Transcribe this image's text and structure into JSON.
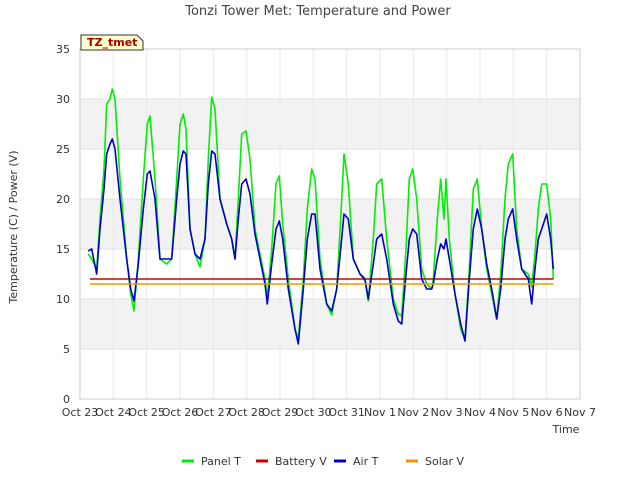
{
  "chart_data": {
    "type": "line",
    "title": "Tonzi Tower Met: Temperature and Power",
    "badge": "TZ_tmet",
    "xlabel": "Time",
    "ylabel": "Temperature (C) / Power (V)",
    "ylim": [
      0,
      35
    ],
    "yticks": [
      0,
      5,
      10,
      15,
      20,
      25,
      30,
      35
    ],
    "xlim": [
      0,
      15
    ],
    "xticks": [
      {
        "v": 0,
        "label": "Oct 23"
      },
      {
        "v": 1,
        "label": "Oct 24"
      },
      {
        "v": 2,
        "label": "Oct 25"
      },
      {
        "v": 3,
        "label": "Oct 26"
      },
      {
        "v": 4,
        "label": "Oct 27"
      },
      {
        "v": 5,
        "label": "Oct 28"
      },
      {
        "v": 6,
        "label": "Oct 29"
      },
      {
        "v": 7,
        "label": "Oct 30"
      },
      {
        "v": 8,
        "label": "Oct 31"
      },
      {
        "v": 9,
        "label": "Nov 1"
      },
      {
        "v": 10,
        "label": "Nov 2"
      },
      {
        "v": 11,
        "label": "Nov 3"
      },
      {
        "v": 12,
        "label": "Nov 4"
      },
      {
        "v": 13,
        "label": "Nov 5"
      },
      {
        "v": 14,
        "label": "Nov 6"
      },
      {
        "v": 15,
        "label": "Nov 7"
      }
    ],
    "grid": true,
    "legend_position": "bottom",
    "series": [
      {
        "name": "Panel T",
        "color": "#00ee00",
        "points": [
          [
            0.25,
            14.5
          ],
          [
            0.35,
            14.0
          ],
          [
            0.5,
            13.0
          ],
          [
            0.6,
            18.0
          ],
          [
            0.72,
            23.0
          ],
          [
            0.8,
            29.5
          ],
          [
            0.9,
            30.0
          ],
          [
            0.97,
            31.0
          ],
          [
            1.05,
            30.0
          ],
          [
            1.2,
            22.0
          ],
          [
            1.4,
            14.0
          ],
          [
            1.52,
            10.5
          ],
          [
            1.62,
            8.8
          ],
          [
            1.75,
            14.0
          ],
          [
            1.9,
            22.0
          ],
          [
            2.02,
            27.5
          ],
          [
            2.1,
            28.3
          ],
          [
            2.25,
            22.0
          ],
          [
            2.4,
            14.0
          ],
          [
            2.6,
            13.5
          ],
          [
            2.75,
            14.0
          ],
          [
            2.9,
            22.0
          ],
          [
            3.0,
            27.5
          ],
          [
            3.1,
            28.5
          ],
          [
            3.18,
            27.0
          ],
          [
            3.3,
            17.0
          ],
          [
            3.45,
            14.5
          ],
          [
            3.6,
            13.2
          ],
          [
            3.75,
            16.0
          ],
          [
            3.85,
            24.0
          ],
          [
            3.95,
            30.2
          ],
          [
            4.05,
            29.0
          ],
          [
            4.2,
            20.0
          ],
          [
            4.4,
            17.5
          ],
          [
            4.55,
            16.0
          ],
          [
            4.65,
            14.0
          ],
          [
            4.75,
            20.0
          ],
          [
            4.85,
            26.5
          ],
          [
            4.98,
            26.8
          ],
          [
            5.1,
            24.0
          ],
          [
            5.25,
            17.0
          ],
          [
            5.4,
            14.5
          ],
          [
            5.55,
            12.0
          ],
          [
            5.62,
            10.2
          ],
          [
            5.75,
            15.0
          ],
          [
            5.88,
            21.5
          ],
          [
            5.98,
            22.3
          ],
          [
            6.08,
            17.5
          ],
          [
            6.25,
            12.0
          ],
          [
            6.45,
            7.0
          ],
          [
            6.55,
            6.0
          ],
          [
            6.7,
            12.0
          ],
          [
            6.82,
            19.0
          ],
          [
            6.95,
            23.0
          ],
          [
            7.05,
            22.0
          ],
          [
            7.2,
            14.0
          ],
          [
            7.4,
            9.5
          ],
          [
            7.55,
            8.4
          ],
          [
            7.7,
            11.0
          ],
          [
            7.82,
            18.0
          ],
          [
            7.92,
            24.5
          ],
          [
            8.05,
            21.5
          ],
          [
            8.2,
            14.0
          ],
          [
            8.4,
            12.5
          ],
          [
            8.55,
            11.8
          ],
          [
            8.65,
            9.8
          ],
          [
            8.8,
            16.0
          ],
          [
            8.9,
            21.5
          ],
          [
            9.05,
            22.0
          ],
          [
            9.2,
            16.0
          ],
          [
            9.4,
            10.0
          ],
          [
            9.55,
            8.5
          ],
          [
            9.65,
            8.3
          ],
          [
            9.78,
            15.0
          ],
          [
            9.88,
            22.0
          ],
          [
            9.98,
            23.0
          ],
          [
            10.1,
            20.0
          ],
          [
            10.25,
            13.0
          ],
          [
            10.4,
            11.5
          ],
          [
            10.55,
            11.0
          ],
          [
            10.6,
            12.0
          ],
          [
            10.72,
            18.0
          ],
          [
            10.82,
            22.0
          ],
          [
            10.92,
            18.0
          ],
          [
            10.98,
            22.0
          ],
          [
            11.08,
            16.0
          ],
          [
            11.25,
            10.5
          ],
          [
            11.42,
            7.0
          ],
          [
            11.55,
            6.0
          ],
          [
            11.68,
            13.0
          ],
          [
            11.8,
            21.0
          ],
          [
            11.92,
            22.0
          ],
          [
            12.05,
            17.0
          ],
          [
            12.2,
            13.0
          ],
          [
            12.35,
            10.5
          ],
          [
            12.5,
            8.0
          ],
          [
            12.62,
            12.5
          ],
          [
            12.75,
            20.0
          ],
          [
            12.85,
            23.5
          ],
          [
            12.98,
            24.5
          ],
          [
            13.1,
            17.0
          ],
          [
            13.25,
            13.0
          ],
          [
            13.45,
            12.5
          ],
          [
            13.55,
            11.2
          ],
          [
            13.65,
            14.5
          ],
          [
            13.75,
            19.0
          ],
          [
            13.85,
            21.5
          ],
          [
            14.0,
            21.5
          ],
          [
            14.12,
            18.0
          ],
          [
            14.2,
            12.0
          ]
        ]
      },
      {
        "name": "Battery V",
        "color": "#cc0000",
        "points": [
          [
            0.3,
            12.0
          ],
          [
            3.0,
            12.0
          ],
          [
            6.0,
            12.0
          ],
          [
            9.0,
            12.0
          ],
          [
            12.0,
            12.0
          ],
          [
            14.2,
            12.0
          ]
        ]
      },
      {
        "name": "Air T",
        "color": "#0000cc",
        "points": [
          [
            0.25,
            14.8
          ],
          [
            0.35,
            15.0
          ],
          [
            0.5,
            12.5
          ],
          [
            0.6,
            17.0
          ],
          [
            0.72,
            21.0
          ],
          [
            0.8,
            24.5
          ],
          [
            0.9,
            25.5
          ],
          [
            0.97,
            26.0
          ],
          [
            1.05,
            25.0
          ],
          [
            1.2,
            20.0
          ],
          [
            1.4,
            14.0
          ],
          [
            1.52,
            11.0
          ],
          [
            1.62,
            9.8
          ],
          [
            1.75,
            13.5
          ],
          [
            1.9,
            19.0
          ],
          [
            2.02,
            22.5
          ],
          [
            2.1,
            22.8
          ],
          [
            2.25,
            20.0
          ],
          [
            2.4,
            14.0
          ],
          [
            2.6,
            14.0
          ],
          [
            2.75,
            14.0
          ],
          [
            2.9,
            20.0
          ],
          [
            3.0,
            23.5
          ],
          [
            3.1,
            24.8
          ],
          [
            3.18,
            24.5
          ],
          [
            3.3,
            17.0
          ],
          [
            3.45,
            14.5
          ],
          [
            3.6,
            14.0
          ],
          [
            3.75,
            16.0
          ],
          [
            3.85,
            21.5
          ],
          [
            3.95,
            24.8
          ],
          [
            4.05,
            24.5
          ],
          [
            4.2,
            20.0
          ],
          [
            4.4,
            17.5
          ],
          [
            4.55,
            16.0
          ],
          [
            4.65,
            14.0
          ],
          [
            4.75,
            18.0
          ],
          [
            4.85,
            21.5
          ],
          [
            4.98,
            22.0
          ],
          [
            5.1,
            20.5
          ],
          [
            5.25,
            16.5
          ],
          [
            5.4,
            14.0
          ],
          [
            5.55,
            11.5
          ],
          [
            5.62,
            9.5
          ],
          [
            5.75,
            13.5
          ],
          [
            5.88,
            17.0
          ],
          [
            5.98,
            17.8
          ],
          [
            6.08,
            16.0
          ],
          [
            6.25,
            11.0
          ],
          [
            6.45,
            7.0
          ],
          [
            6.55,
            5.5
          ],
          [
            6.7,
            11.0
          ],
          [
            6.82,
            16.0
          ],
          [
            6.95,
            18.5
          ],
          [
            7.05,
            18.5
          ],
          [
            7.2,
            13.0
          ],
          [
            7.4,
            9.5
          ],
          [
            7.55,
            8.8
          ],
          [
            7.7,
            11.0
          ],
          [
            7.82,
            15.0
          ],
          [
            7.92,
            18.5
          ],
          [
            8.05,
            18.0
          ],
          [
            8.2,
            14.0
          ],
          [
            8.4,
            12.5
          ],
          [
            8.55,
            12.0
          ],
          [
            8.65,
            10.0
          ],
          [
            8.8,
            13.5
          ],
          [
            8.9,
            16.0
          ],
          [
            9.05,
            16.5
          ],
          [
            9.2,
            14.0
          ],
          [
            9.4,
            9.5
          ],
          [
            9.55,
            7.8
          ],
          [
            9.65,
            7.5
          ],
          [
            9.78,
            12.5
          ],
          [
            9.88,
            16.0
          ],
          [
            9.98,
            17.0
          ],
          [
            10.1,
            16.5
          ],
          [
            10.25,
            12.0
          ],
          [
            10.4,
            11.0
          ],
          [
            10.55,
            11.0
          ],
          [
            10.6,
            11.5
          ],
          [
            10.72,
            14.0
          ],
          [
            10.82,
            15.5
          ],
          [
            10.92,
            15.0
          ],
          [
            10.98,
            16.0
          ],
          [
            11.08,
            14.0
          ],
          [
            11.25,
            10.5
          ],
          [
            11.42,
            7.5
          ],
          [
            11.55,
            5.8
          ],
          [
            11.68,
            12.0
          ],
          [
            11.8,
            17.0
          ],
          [
            11.92,
            19.0
          ],
          [
            12.05,
            17.0
          ],
          [
            12.2,
            13.5
          ],
          [
            12.35,
            11.0
          ],
          [
            12.5,
            8.0
          ],
          [
            12.62,
            11.0
          ],
          [
            12.75,
            16.0
          ],
          [
            12.85,
            18.0
          ],
          [
            12.98,
            19.0
          ],
          [
            13.1,
            16.0
          ],
          [
            13.25,
            13.0
          ],
          [
            13.45,
            12.0
          ],
          [
            13.55,
            9.5
          ],
          [
            13.65,
            13.0
          ],
          [
            13.75,
            16.0
          ],
          [
            13.85,
            17.0
          ],
          [
            14.0,
            18.5
          ],
          [
            14.12,
            16.0
          ],
          [
            14.2,
            13.0
          ]
        ]
      },
      {
        "name": "Solar V",
        "color": "#ee9900",
        "points": [
          [
            0.3,
            11.5
          ],
          [
            3.0,
            11.5
          ],
          [
            6.0,
            11.5
          ],
          [
            9.0,
            11.5
          ],
          [
            12.0,
            11.5
          ],
          [
            14.2,
            11.5
          ]
        ]
      }
    ]
  }
}
